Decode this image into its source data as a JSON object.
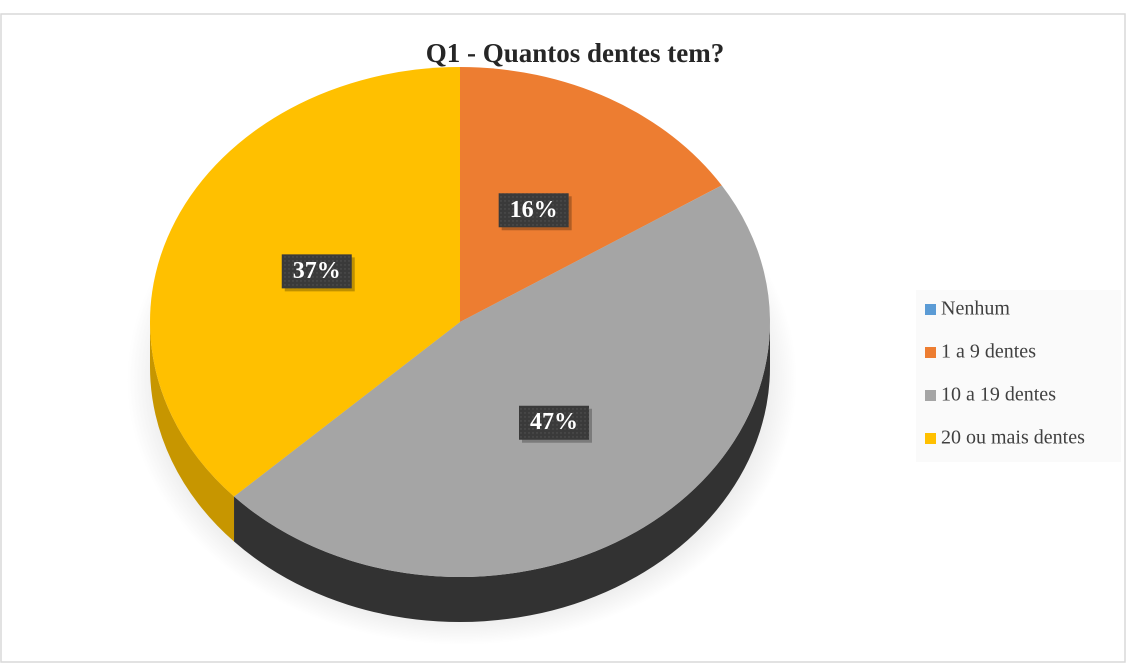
{
  "chart_data": {
    "type": "pie",
    "title": "Q1 - Quantos dentes tem?",
    "categories": [
      "Nenhum",
      "1 a 9 dentes",
      "10 a 19 dentes",
      "20 ou mais dentes"
    ],
    "values": [
      0,
      16,
      47,
      37
    ],
    "value_labels": [
      null,
      "16%",
      "47%",
      "37%"
    ],
    "colors": [
      "#5b9bd5",
      "#ed7d31",
      "#a5a5a5",
      "#ffc000"
    ],
    "legend": "right"
  }
}
